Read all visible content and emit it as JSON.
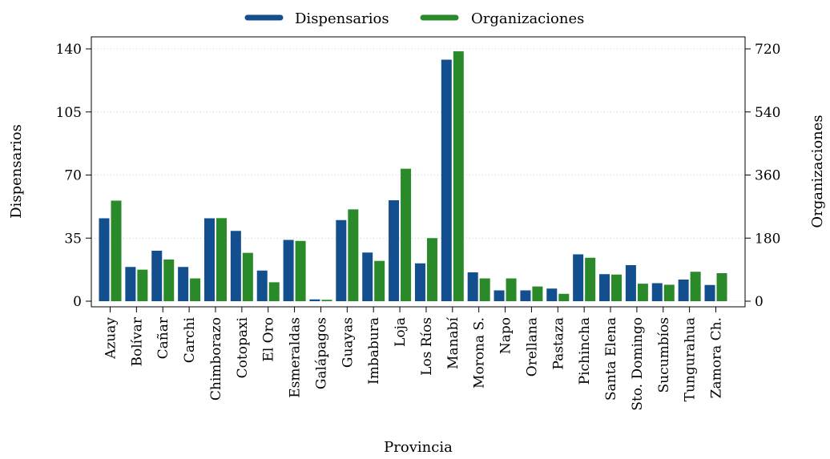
{
  "chart_data": {
    "type": "bar",
    "xlabel": "Provincia",
    "ylabel_left": "Dispensarios",
    "ylabel_right": "Organizaciones",
    "ylim_left": [
      0,
      140
    ],
    "ylim_right": [
      0,
      720
    ],
    "yticks_left": [
      "0",
      "35",
      "70",
      "105",
      "140"
    ],
    "yticks_right": [
      "0",
      "180",
      "360",
      "540",
      "720"
    ],
    "grid": "horizontal dotted",
    "legend_position": "top-center",
    "categories": [
      "Azuay",
      "Bolívar",
      "Cañar",
      "Carchi",
      "Chimborazo",
      "Cotopaxi",
      "El Oro",
      "Esmeraldas",
      "Galápagos",
      "Guayas",
      "Imbabura",
      "Loja",
      "Los Ríos",
      "Manabí",
      "Morona S.",
      "Napo",
      "Orellana",
      "Pastaza",
      "Pichincha",
      "Santa Elena",
      "Sto. Domingo",
      "Sucumbíos",
      "Tungurahua",
      "Zamora Ch."
    ],
    "series": [
      {
        "name": "Dispensarios",
        "axis": "left",
        "color": "#134e8e",
        "values": [
          46,
          19,
          28,
          19,
          46,
          39,
          17,
          34,
          1,
          45,
          27,
          56,
          21,
          134,
          16,
          6,
          6,
          7,
          26,
          15,
          20,
          10,
          12,
          9
        ]
      },
      {
        "name": "Organizaciones",
        "axis": "right",
        "color": "#2a8a2a",
        "values": [
          287,
          90,
          119,
          65,
          237,
          138,
          54,
          172,
          4,
          262,
          115,
          378,
          180,
          713,
          65,
          65,
          42,
          21,
          124,
          76,
          50,
          47,
          84,
          80
        ]
      }
    ]
  }
}
